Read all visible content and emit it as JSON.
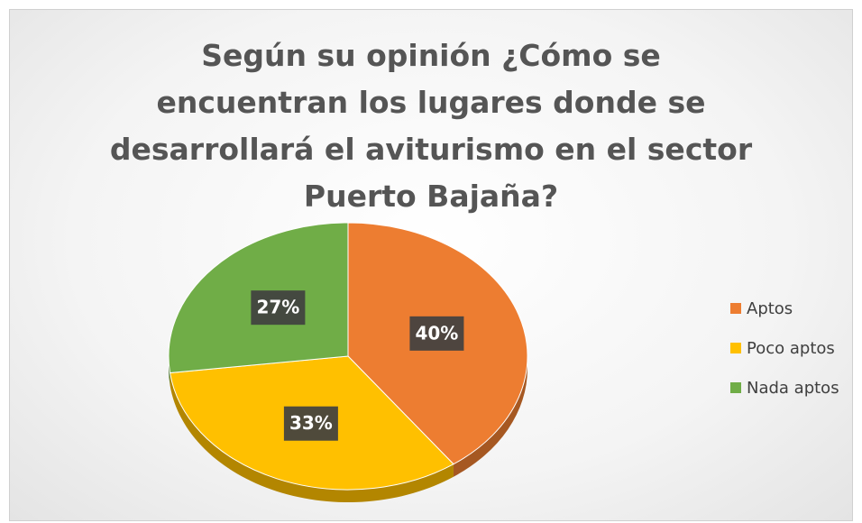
{
  "chart_data": {
    "type": "pie",
    "title": "Según su opinión ¿Cómo se encuentran los lugares donde se desarrollará el aviturismo en el sector Puerto Bajaña?",
    "categories": [
      "Aptos",
      "Poco aptos",
      "Nada aptos"
    ],
    "values": [
      40,
      33,
      27
    ],
    "value_labels": [
      "40%",
      "33%",
      "27%"
    ],
    "colors": [
      "#ED7D31",
      "#FFC000",
      "#70AD47"
    ],
    "legend": "right"
  }
}
